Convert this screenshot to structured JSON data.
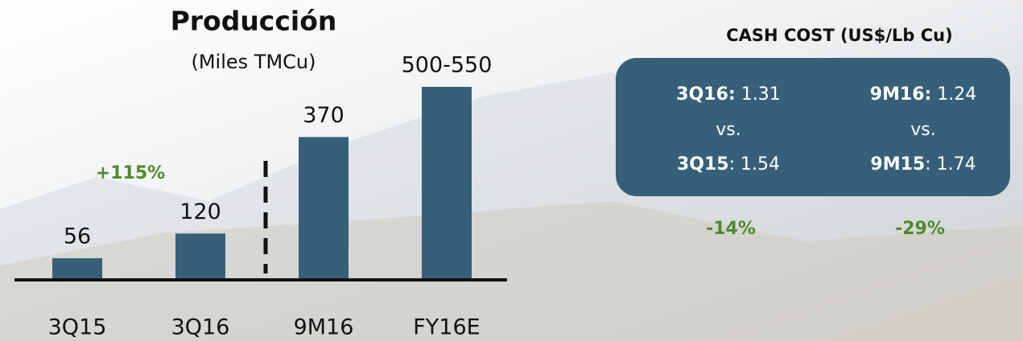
{
  "chart_data": {
    "type": "bar",
    "title": "Producción",
    "subtitle": "(Miles TMCu)",
    "categories": [
      "3Q15",
      "3Q16",
      "9M16",
      "FY16E"
    ],
    "values": [
      56,
      120,
      370,
      500
    ],
    "value_labels": [
      "56",
      "120",
      "370",
      "500-550"
    ],
    "color": "#36607a",
    "annotation": "+115%",
    "annotation_color": "#4f8a2a"
  },
  "cash_cost": {
    "title": "CASH COST (US$/Lb Cu)",
    "columns": [
      {
        "current_label": "3Q16:",
        "current_value": "1.31",
        "vs": "vs.",
        "prior_label": "3Q15",
        "prior_value": ": 1.54",
        "change": "-14%"
      },
      {
        "current_label": "9M16:",
        "current_value": "1.24",
        "vs": "vs.",
        "prior_label": "9M15",
        "prior_value": ": 1.74",
        "change": "-29%"
      }
    ]
  }
}
